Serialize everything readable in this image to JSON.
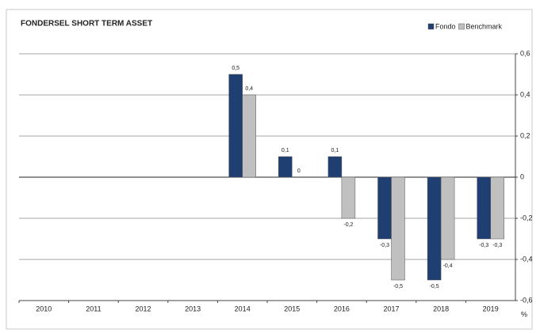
{
  "chart_data": {
    "type": "bar",
    "title": "FONDERSEL SHORT TERM ASSET",
    "categories": [
      "2010",
      "2011",
      "2012",
      "2013",
      "2014",
      "2015",
      "2016",
      "2017",
      "2018",
      "2019"
    ],
    "series": [
      {
        "name": "Fondo",
        "color": "#1f3f73",
        "values": [
          null,
          null,
          null,
          null,
          0.5,
          0.1,
          0.1,
          -0.3,
          -0.5,
          -0.3
        ],
        "value_labels": [
          null,
          null,
          null,
          null,
          "0,5",
          "0,1",
          "0,1",
          "-0,3",
          "-0,5",
          "-0,3"
        ]
      },
      {
        "name": "Benchmark",
        "color": "#c0c0c0",
        "values": [
          null,
          null,
          null,
          null,
          0.4,
          0,
          -0.2,
          -0.5,
          -0.4,
          -0.3
        ],
        "value_labels": [
          null,
          null,
          null,
          null,
          "0,4",
          "0",
          "-0,2",
          "-0,5",
          "-0,4",
          "-0,3"
        ]
      }
    ],
    "ylabel": "%",
    "ylim": [
      -0.6,
      0.6
    ],
    "yticks": [
      {
        "value": -0.6,
        "label": "-0,6"
      },
      {
        "value": -0.4,
        "label": "-0,4"
      },
      {
        "value": -0.2,
        "label": "-0,2"
      },
      0,
      {
        "value": 0.2,
        "label": "0,2"
      },
      {
        "value": 0.4,
        "label": "0,4"
      },
      {
        "value": 0.6,
        "label": "0,6"
      }
    ],
    "grid": true,
    "legend": "top-right"
  }
}
